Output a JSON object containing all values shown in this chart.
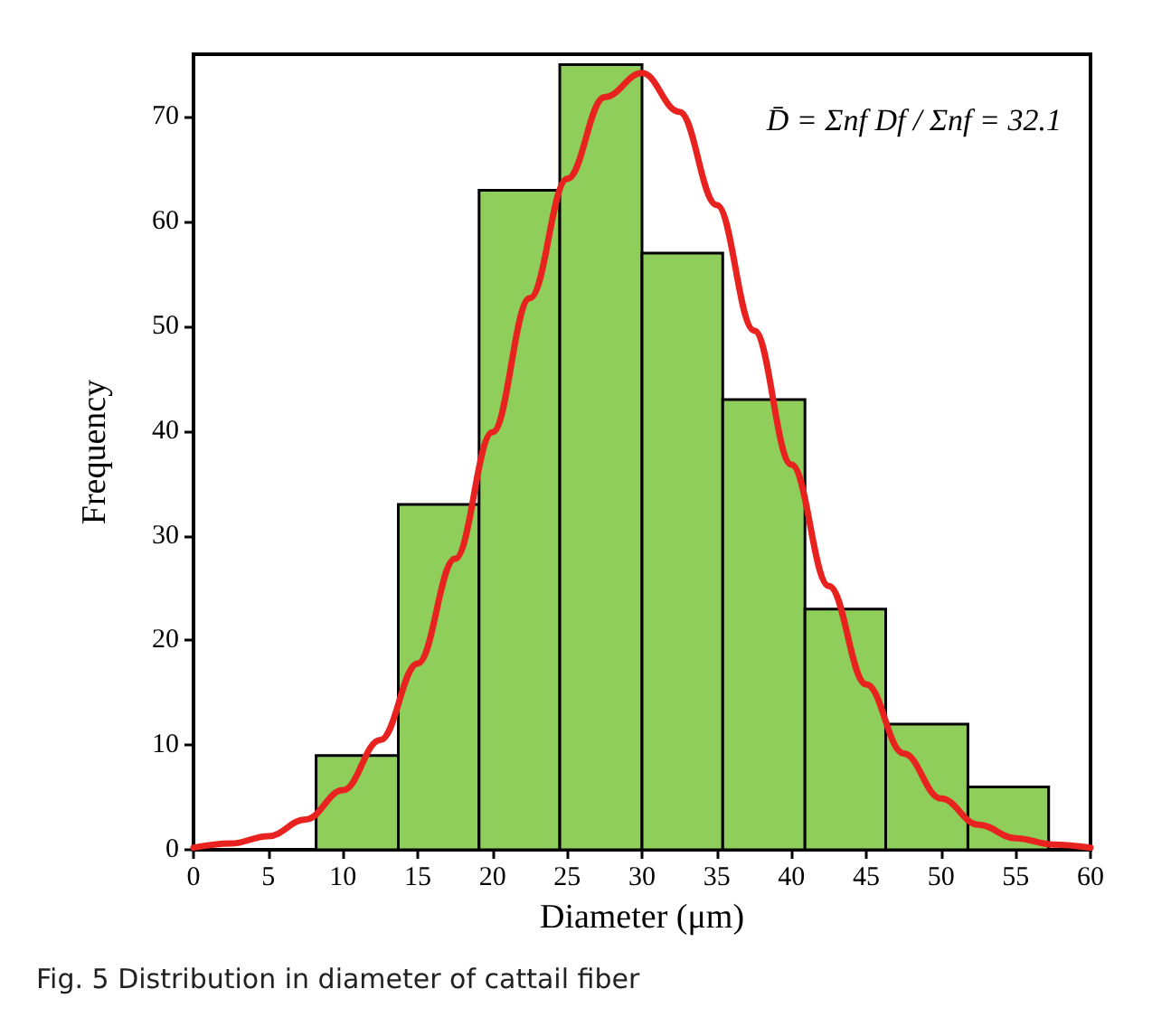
{
  "chart_data": {
    "type": "histogram",
    "xlabel": "Diameter (μm)",
    "ylabel": "Frequency",
    "bins": [
      8.2,
      13.7,
      19.1,
      24.5,
      30.0,
      35.4,
      40.9,
      46.3,
      51.8,
      57.2
    ],
    "values": [
      9,
      33,
      63,
      75,
      57,
      43,
      23,
      12,
      6
    ],
    "color": "#8fce5a",
    "series": [
      {
        "type": "line",
        "color": "#e8231f",
        "x": [
          0,
          2.5,
          5,
          7.5,
          10,
          12.5,
          15,
          17.5,
          20,
          22.5,
          25,
          27.5,
          30,
          32.5,
          35,
          37.5,
          40,
          42.5,
          45,
          47.5,
          50,
          52.5,
          55,
          57.5,
          60
        ],
        "values": [
          0.2,
          0.6,
          1.3,
          2.9,
          5.7,
          10.5,
          17.8,
          27.8,
          39.9,
          52.7,
          64.1,
          71.9,
          74.2,
          70.5,
          61.6,
          49.6,
          36.8,
          25.2,
          15.8,
          9.2,
          4.9,
          2.4,
          1.1,
          0.5,
          0.2
        ]
      }
    ],
    "xlim": [
      0,
      60
    ],
    "xticks": [
      0,
      5,
      10,
      15,
      20,
      25,
      30,
      35,
      40,
      45,
      50,
      55,
      60
    ],
    "ylim": [
      0,
      76
    ],
    "yticks": [
      0,
      10,
      20,
      30,
      40,
      50,
      60,
      70
    ],
    "annotations": [
      "D̄ = Σnf Df / Σnf = 32.1",
      "Fig. 5 Distribution in diameter of cattail fiber"
    ]
  }
}
